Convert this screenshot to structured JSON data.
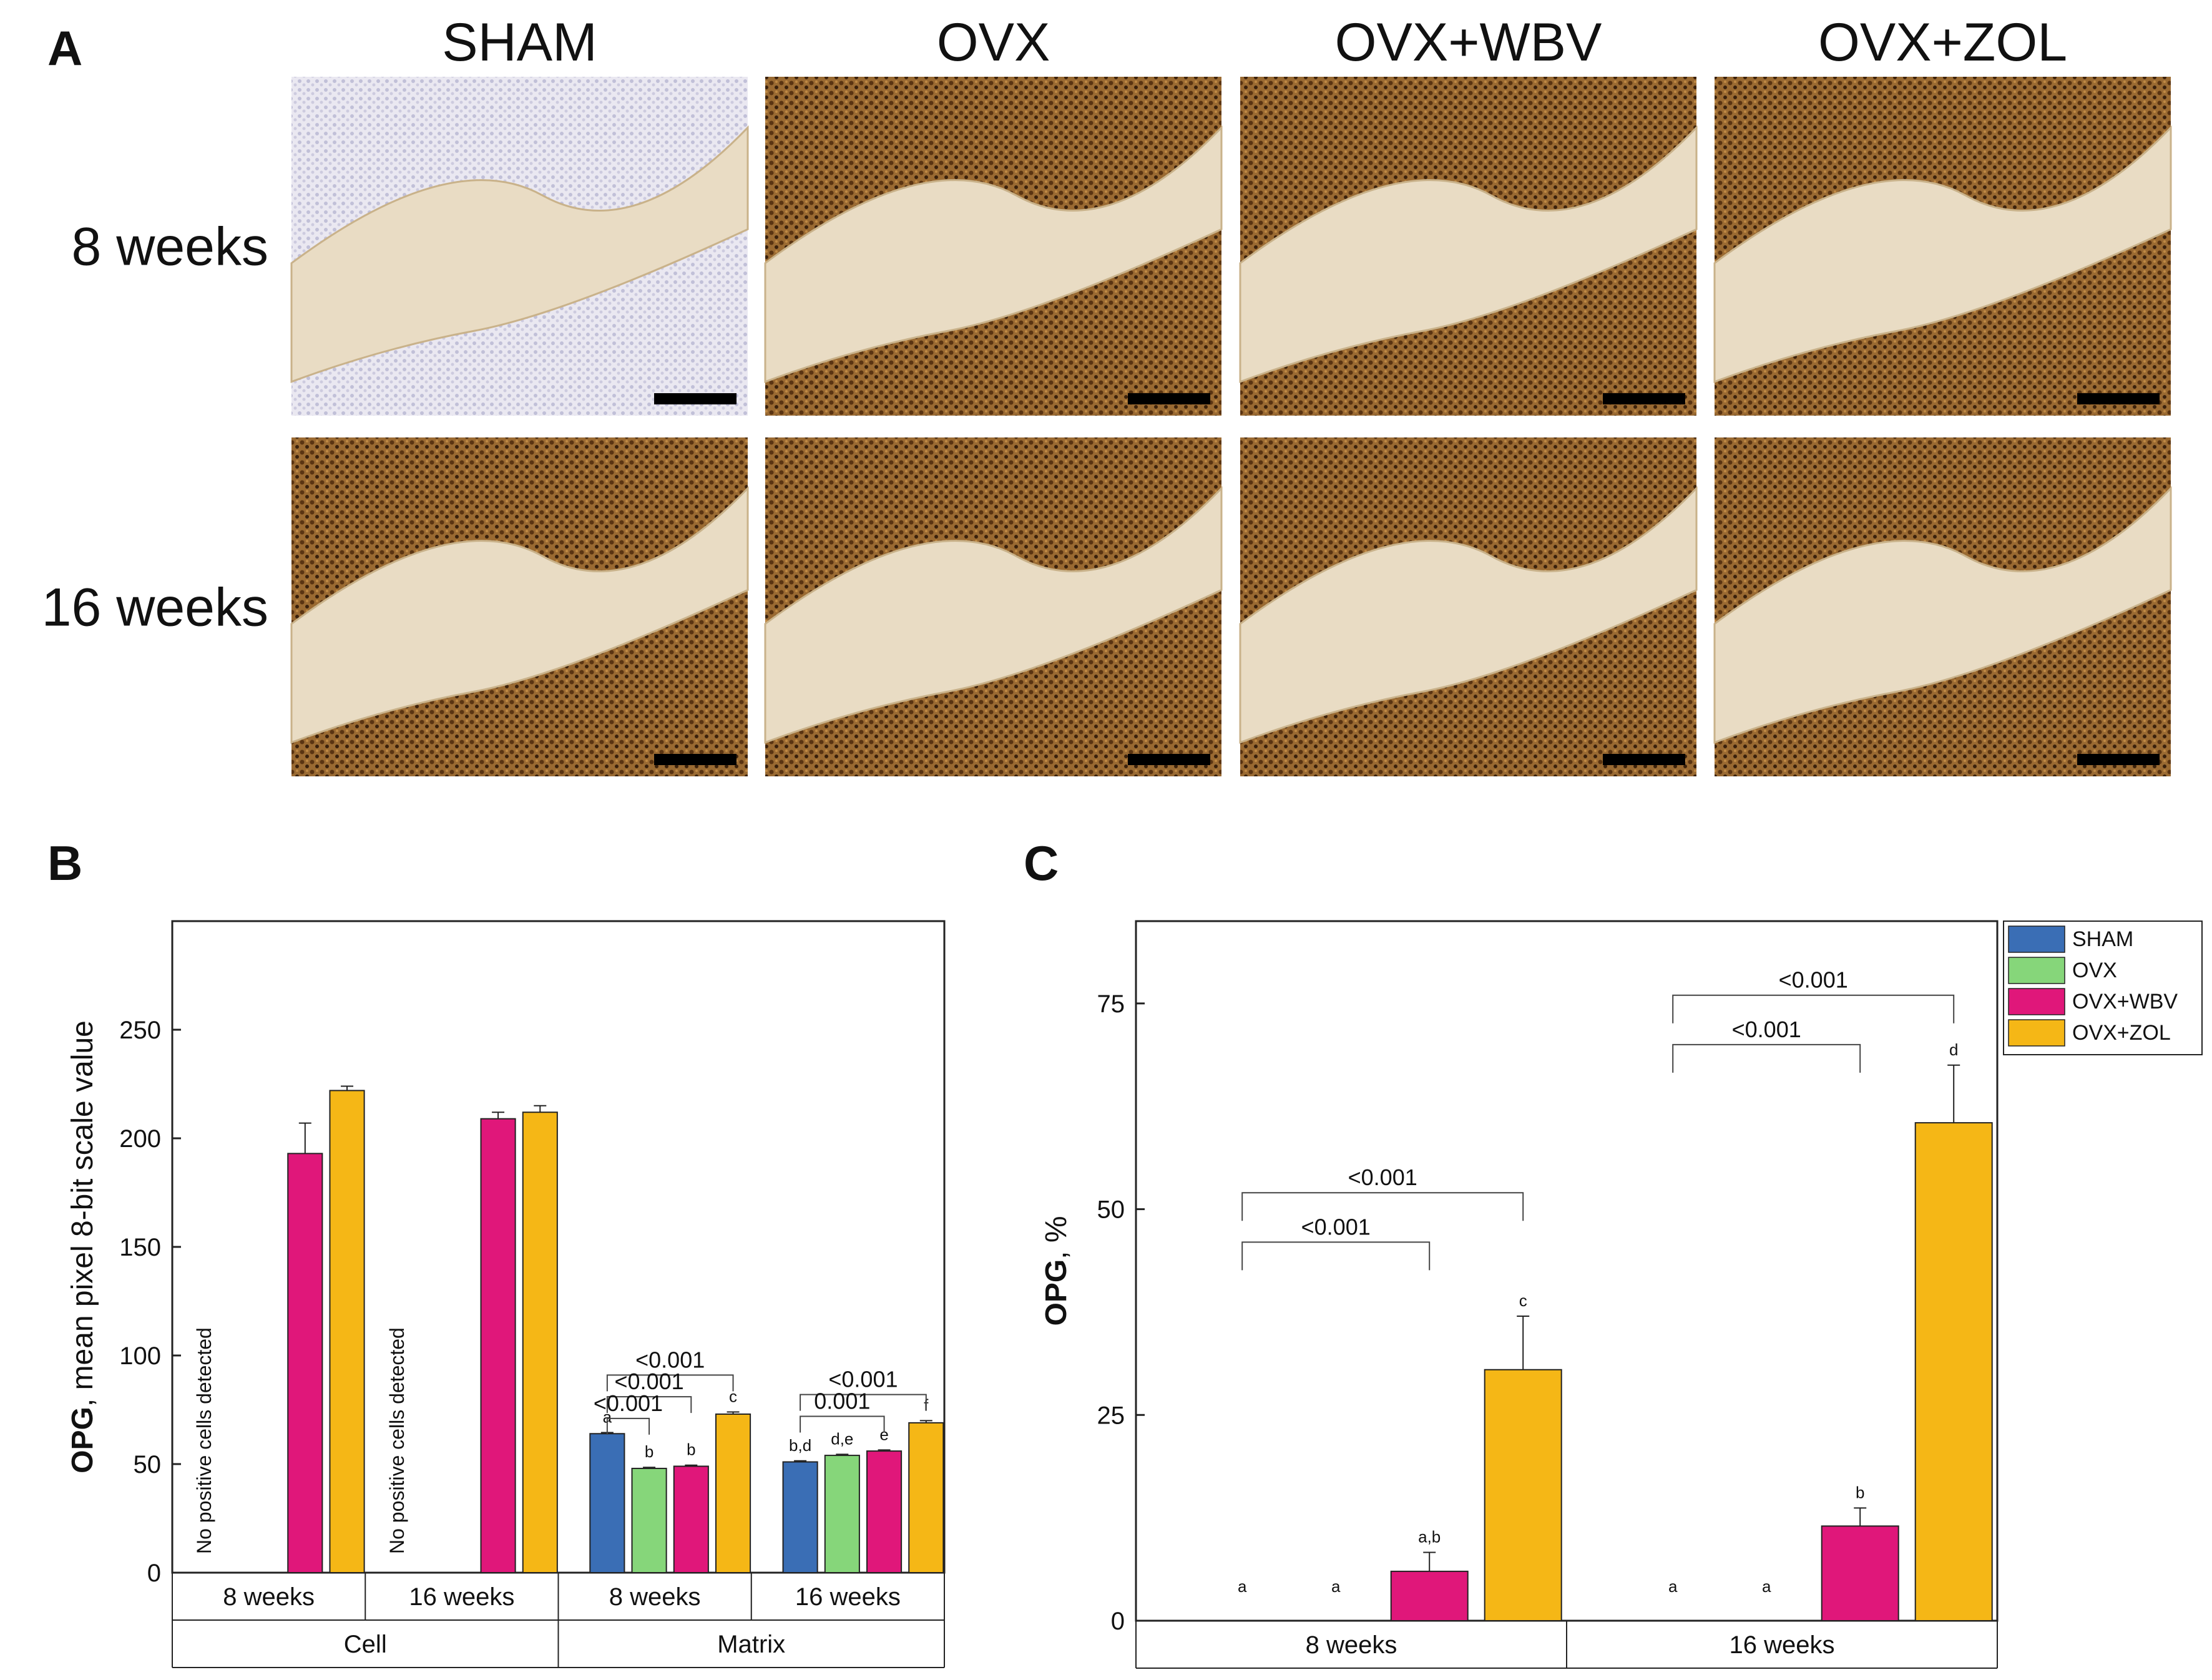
{
  "panel_a": {
    "letter": "A",
    "columns": [
      "SHAM",
      "OVX",
      "OVX+WBV",
      "OVX+ZOL"
    ],
    "rows": [
      "8 weeks",
      "16 weeks"
    ],
    "stain_level": [
      [
        0.15,
        0.7,
        0.5,
        0.55
      ],
      [
        0.8,
        0.95,
        0.85,
        1.0
      ]
    ]
  },
  "colors": {
    "SHAM": "#3a6eb5",
    "OVX": "#86d67a",
    "OVX+WBV": "#e0177a",
    "OVX+ZOL": "#f5b716"
  },
  "chart_data": [
    {
      "panel": "B",
      "type": "bar",
      "ylabel_bold": "OPG",
      "ylabel_rest": ", mean pixel 8-bit scale value",
      "ylim": [
        0,
        300
      ],
      "yticks": [
        0,
        50,
        100,
        150,
        200,
        250
      ],
      "series_names": [
        "SHAM",
        "OVX",
        "OVX+WBV",
        "OVX+ZOL"
      ],
      "groups": [
        {
          "label": "8 weeks",
          "parent": "Cell",
          "note": "No positive cells detected",
          "bars": [
            {
              "series": "OVX+WBV",
              "value": 193,
              "err": 14
            },
            {
              "series": "OVX+ZOL",
              "value": 222,
              "err": 2
            }
          ]
        },
        {
          "label": "16 weeks",
          "parent": "Cell",
          "note": "No positive cells detected",
          "bars": [
            {
              "series": "OVX+WBV",
              "value": 209,
              "err": 3
            },
            {
              "series": "OVX+ZOL",
              "value": 212,
              "err": 3
            }
          ]
        },
        {
          "label": "8 weeks",
          "parent": "Matrix",
          "bars": [
            {
              "series": "SHAM",
              "value": 64,
              "err": 0.5,
              "letter": "a"
            },
            {
              "series": "OVX",
              "value": 48,
              "err": 0.5,
              "letter": "b"
            },
            {
              "series": "OVX+WBV",
              "value": 49,
              "err": 0.5,
              "letter": "b"
            },
            {
              "series": "OVX+ZOL",
              "value": 73,
              "err": 1,
              "letter": "c"
            }
          ]
        },
        {
          "label": "16 weeks",
          "parent": "Matrix",
          "bars": [
            {
              "series": "SHAM",
              "value": 51,
              "err": 0.5,
              "letter": "b,d"
            },
            {
              "series": "OVX",
              "value": 54,
              "err": 0.5,
              "letter": "d,e"
            },
            {
              "series": "OVX+WBV",
              "value": 56,
              "err": 0.5,
              "letter": "e"
            },
            {
              "series": "OVX+ZOL",
              "value": 69,
              "err": 1,
              "letter": "f"
            }
          ]
        }
      ],
      "parents": [
        "Cell",
        "Matrix"
      ],
      "brackets": [
        {
          "group": 2,
          "from": 0,
          "to": 3,
          "label": "<0.001",
          "level": 91
        },
        {
          "group": 2,
          "from": 0,
          "to": 2,
          "label": "<0.001",
          "level": 81
        },
        {
          "group": 2,
          "from": 0,
          "to": 1,
          "label": "<0.001",
          "level": 71
        },
        {
          "group": 3,
          "from": 0,
          "to": 3,
          "label": "<0.001",
          "level": 82
        },
        {
          "group": 3,
          "from": 0,
          "to": 2,
          "label": "0.001",
          "level": 72
        }
      ]
    },
    {
      "panel": "C",
      "type": "bar",
      "ylabel_bold": "OPG",
      "ylabel_rest": ", %",
      "ylim": [
        0,
        85
      ],
      "yticks": [
        0,
        25,
        50,
        75
      ],
      "series_names": [
        "SHAM",
        "OVX",
        "OVX+WBV",
        "OVX+ZOL"
      ],
      "legend": [
        "SHAM",
        "OVX",
        "OVX+WBV",
        "OVX+ZOL"
      ],
      "legend_position": "top-right-outside",
      "groups": [
        {
          "label": "8 weeks",
          "bars": [
            {
              "series": "SHAM",
              "value": 0,
              "err": 0,
              "letter": "a"
            },
            {
              "series": "OVX",
              "value": 0,
              "err": 0,
              "letter": "a"
            },
            {
              "series": "OVX+WBV",
              "value": 6,
              "err": 2.3,
              "letter": "a,b"
            },
            {
              "series": "OVX+ZOL",
              "value": 30.5,
              "err": 6.5,
              "letter": "c"
            }
          ]
        },
        {
          "label": "16 weeks",
          "bars": [
            {
              "series": "SHAM",
              "value": 0,
              "err": 0,
              "letter": "a"
            },
            {
              "series": "OVX",
              "value": 0,
              "err": 0,
              "letter": "a"
            },
            {
              "series": "OVX+WBV",
              "value": 11.5,
              "err": 2.2,
              "letter": "b"
            },
            {
              "series": "OVX+ZOL",
              "value": 60.5,
              "err": 7,
              "letter": "d"
            }
          ]
        }
      ],
      "brackets": [
        {
          "group": 0,
          "from": 0,
          "to": 3,
          "label": "<0.001",
          "level": 52
        },
        {
          "group": 0,
          "from": 0,
          "to": 2,
          "label": "<0.001",
          "level": 46
        },
        {
          "group": 1,
          "from": 0,
          "to": 3,
          "label": "<0.001",
          "level": 76
        },
        {
          "group": 1,
          "from": 0,
          "to": 2,
          "label": "<0.001",
          "level": 70
        }
      ]
    }
  ]
}
